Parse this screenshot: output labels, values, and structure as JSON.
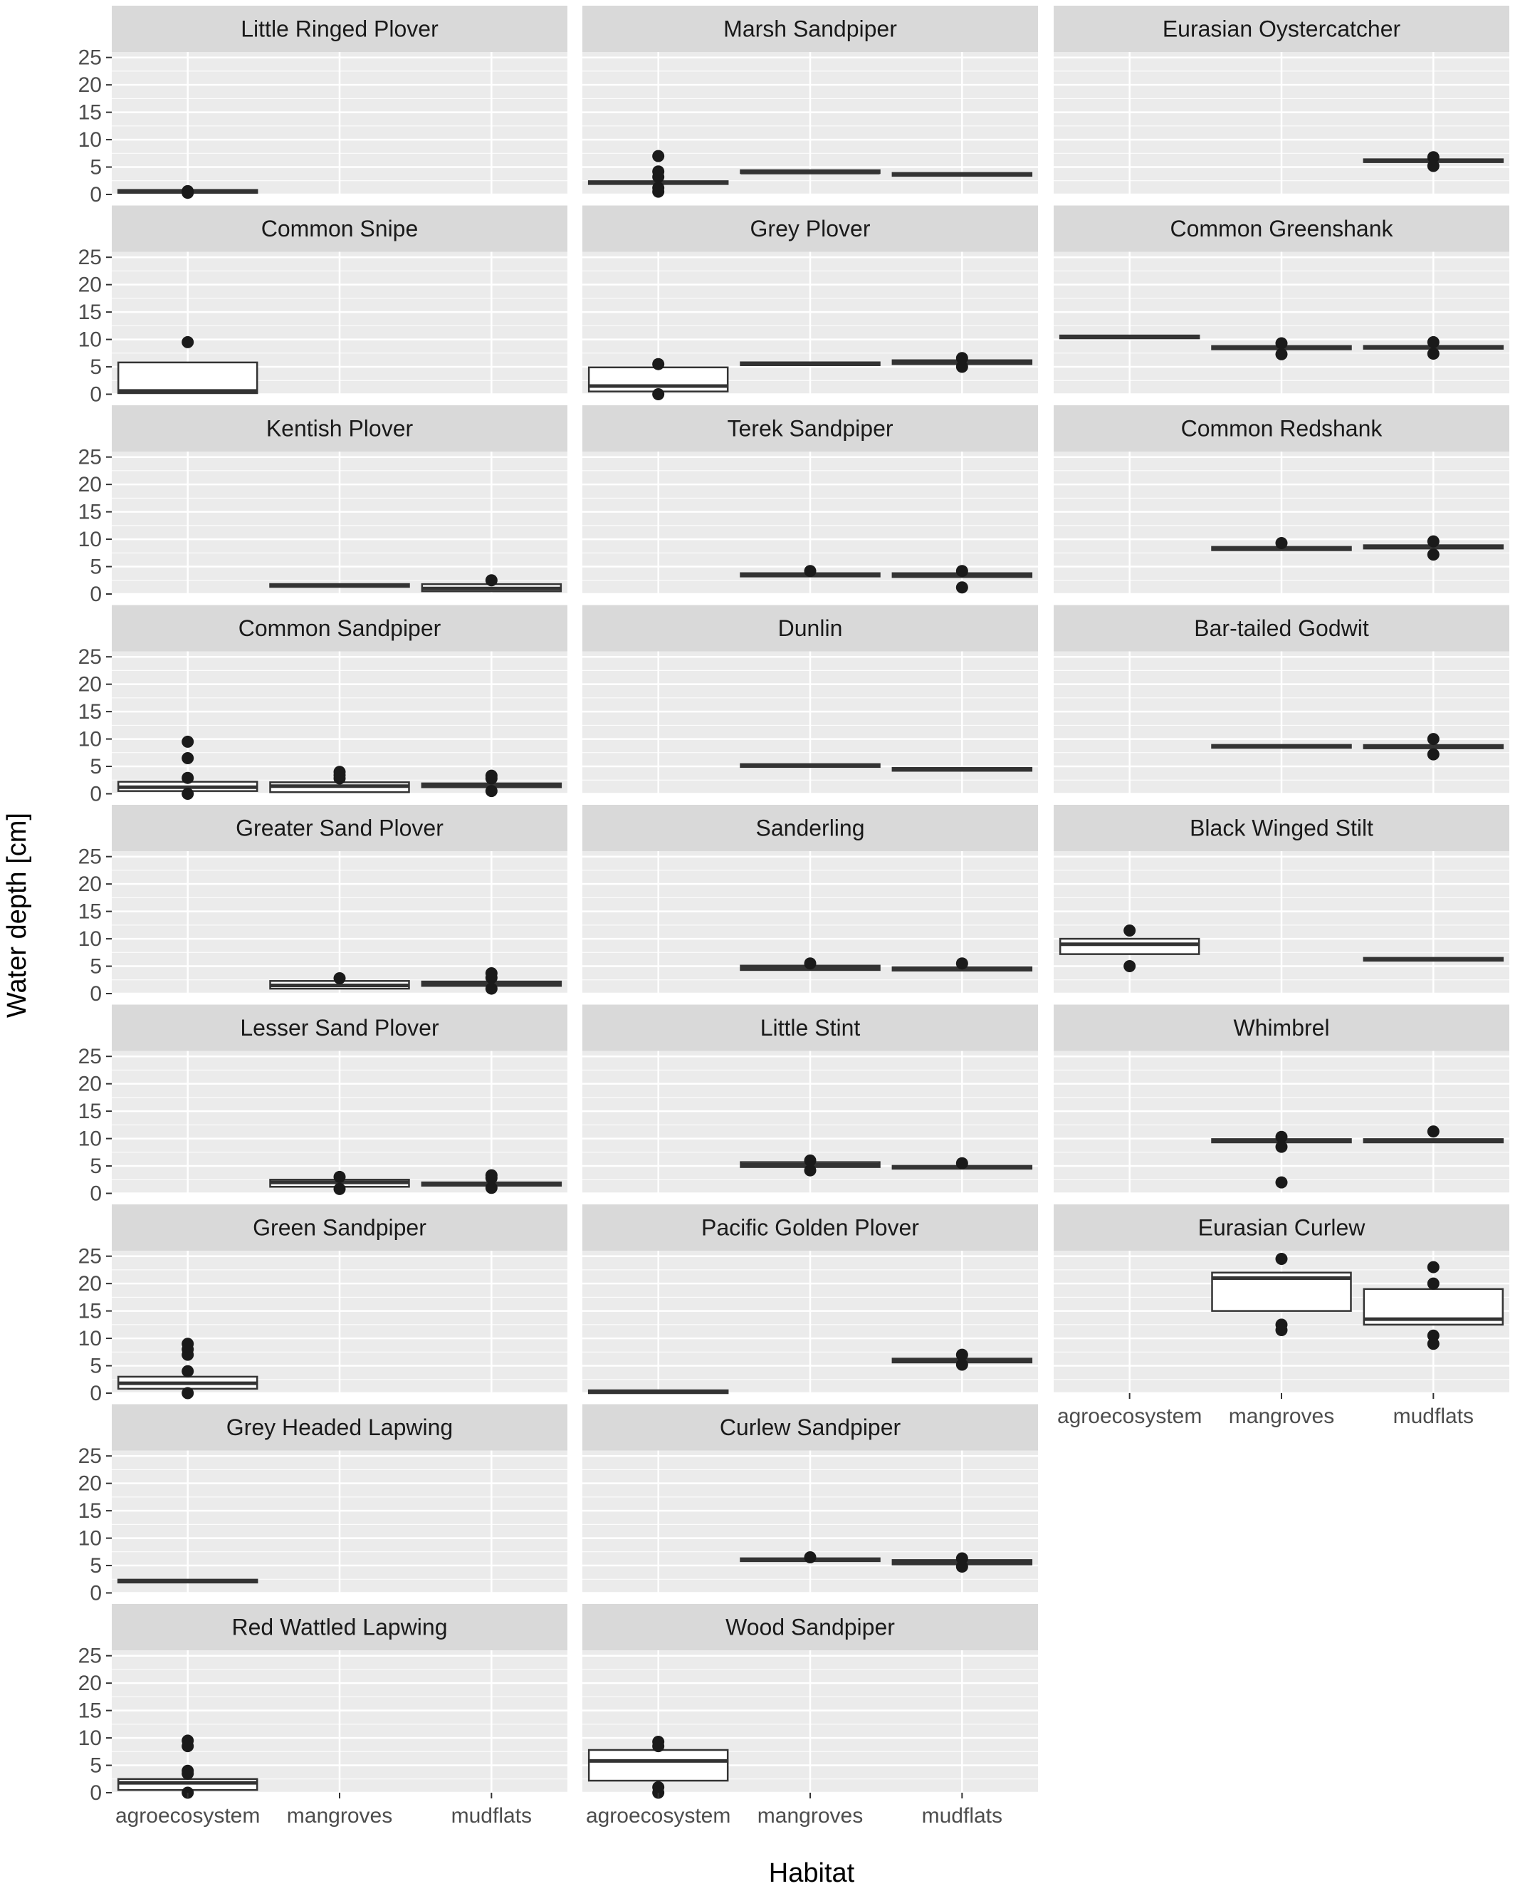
{
  "chart_data": {
    "type": "boxplot",
    "xlabel": "Habitat",
    "ylabel": "Water depth [cm]",
    "categories": [
      "agroecosystem",
      "mangroves",
      "mudflats"
    ],
    "yticks": [
      0,
      5,
      10,
      15,
      20,
      25
    ],
    "ylim": [
      0,
      26
    ],
    "grid": true,
    "colors": {
      "panel_bg": "#ebebeb",
      "strip_bg": "#d9d9d9",
      "grid": "#ffffff",
      "box_fill": "#ffffff",
      "box_line": "#333333",
      "point": "#1a1a1a"
    },
    "panels": [
      {
        "title": "Little Ringed Plover",
        "boxes": [
          {
            "habitat": "agroecosystem",
            "q1": 0.3,
            "median": 0.5,
            "q3": 0.7,
            "outliers": [
              0.3,
              0.6
            ]
          }
        ]
      },
      {
        "title": "Marsh Sandpiper",
        "boxes": [
          {
            "habitat": "agroecosystem",
            "q1": 1.9,
            "median": 2.1,
            "q3": 2.3,
            "outliers": [
              0.5,
              1.2,
              3.2,
              4.2,
              7.0
            ]
          },
          {
            "habitat": "mangroves",
            "q1": 3.9,
            "median": 4.0,
            "q3": 4.2,
            "outliers": []
          },
          {
            "habitat": "mudflats",
            "q1": 3.4,
            "median": 3.6,
            "q3": 3.8,
            "outliers": []
          }
        ]
      },
      {
        "title": "Eurasian Oystercatcher",
        "boxes": [
          {
            "habitat": "mudflats",
            "q1": 5.9,
            "median": 6.1,
            "q3": 6.4,
            "outliers": [
              5.2,
              6.8
            ]
          }
        ]
      },
      {
        "title": "Common Snipe",
        "boxes": [
          {
            "habitat": "agroecosystem",
            "q1": 0.2,
            "median": 0.6,
            "q3": 5.8,
            "outliers": [
              9.5
            ]
          }
        ]
      },
      {
        "title": "Grey Plover",
        "boxes": [
          {
            "habitat": "agroecosystem",
            "q1": 0.5,
            "median": 1.5,
            "q3": 4.9,
            "outliers": [
              0.0,
              5.5
            ]
          },
          {
            "habitat": "mangroves",
            "q1": 5.3,
            "median": 5.5,
            "q3": 5.8,
            "outliers": []
          },
          {
            "habitat": "mudflats",
            "q1": 5.5,
            "median": 5.8,
            "q3": 6.2,
            "outliers": [
              5.0,
              6.6
            ]
          }
        ]
      },
      {
        "title": "Common Greenshank",
        "boxes": [
          {
            "habitat": "agroecosystem",
            "q1": 10.2,
            "median": 10.4,
            "q3": 10.6,
            "outliers": []
          },
          {
            "habitat": "mangroves",
            "q1": 8.2,
            "median": 8.5,
            "q3": 8.8,
            "outliers": [
              7.3,
              9.3
            ]
          },
          {
            "habitat": "mudflats",
            "q1": 8.3,
            "median": 8.6,
            "q3": 8.8,
            "outliers": [
              7.4,
              9.5
            ]
          }
        ]
      },
      {
        "title": "Kentish Plover",
        "boxes": [
          {
            "habitat": "mangroves",
            "q1": 1.3,
            "median": 1.5,
            "q3": 1.7,
            "outliers": []
          },
          {
            "habitat": "mudflats",
            "q1": 0.5,
            "median": 1.0,
            "q3": 1.8,
            "outliers": [
              2.5
            ]
          }
        ]
      },
      {
        "title": "Terek Sandpiper",
        "boxes": [
          {
            "habitat": "mangroves",
            "q1": 3.2,
            "median": 3.5,
            "q3": 3.8,
            "outliers": [
              4.2
            ]
          },
          {
            "habitat": "mudflats",
            "q1": 3.1,
            "median": 3.4,
            "q3": 3.8,
            "outliers": [
              1.2,
              4.2
            ]
          }
        ]
      },
      {
        "title": "Common Redshank",
        "boxes": [
          {
            "habitat": "mangroves",
            "q1": 8.0,
            "median": 8.3,
            "q3": 8.6,
            "outliers": [
              9.3
            ]
          },
          {
            "habitat": "mudflats",
            "q1": 8.3,
            "median": 8.6,
            "q3": 8.9,
            "outliers": [
              7.2,
              9.6
            ]
          }
        ]
      },
      {
        "title": "Common Sandpiper",
        "boxes": [
          {
            "habitat": "agroecosystem",
            "q1": 0.5,
            "median": 1.2,
            "q3": 2.2,
            "outliers": [
              0.0,
              2.9,
              6.5,
              9.5
            ]
          },
          {
            "habitat": "mangroves",
            "q1": 0.3,
            "median": 1.4,
            "q3": 2.1,
            "outliers": [
              2.8,
              3.4,
              4.0
            ]
          },
          {
            "habitat": "mudflats",
            "q1": 1.2,
            "median": 1.5,
            "q3": 1.9,
            "outliers": [
              0.5,
              2.8,
              3.3
            ]
          }
        ]
      },
      {
        "title": "Dunlin",
        "boxes": [
          {
            "habitat": "mangroves",
            "q1": 4.9,
            "median": 5.1,
            "q3": 5.4,
            "outliers": []
          },
          {
            "habitat": "mudflats",
            "q1": 4.2,
            "median": 4.4,
            "q3": 4.6,
            "outliers": []
          }
        ]
      },
      {
        "title": "Bar-tailed Godwit",
        "boxes": [
          {
            "habitat": "mangroves",
            "q1": 8.4,
            "median": 8.6,
            "q3": 8.8,
            "outliers": []
          },
          {
            "habitat": "mudflats",
            "q1": 8.3,
            "median": 8.6,
            "q3": 8.9,
            "outliers": [
              7.2,
              10.0
            ]
          }
        ]
      },
      {
        "title": "Greater Sand Plover",
        "boxes": [
          {
            "habitat": "mangroves",
            "q1": 0.9,
            "median": 1.5,
            "q3": 2.3,
            "outliers": [
              2.8
            ]
          },
          {
            "habitat": "mudflats",
            "q1": 1.4,
            "median": 1.8,
            "q3": 2.2,
            "outliers": [
              0.9,
              2.9,
              3.7
            ]
          }
        ]
      },
      {
        "title": "Sanderling",
        "boxes": [
          {
            "habitat": "mangroves",
            "q1": 4.3,
            "median": 4.7,
            "q3": 5.1,
            "outliers": [
              5.5
            ]
          },
          {
            "habitat": "mudflats",
            "q1": 4.2,
            "median": 4.5,
            "q3": 4.8,
            "outliers": [
              5.5
            ]
          }
        ]
      },
      {
        "title": "Black Winged Stilt",
        "boxes": [
          {
            "habitat": "agroecosystem",
            "q1": 7.2,
            "median": 9.0,
            "q3": 10.0,
            "outliers": [
              5.0,
              11.5
            ]
          },
          {
            "habitat": "mudflats",
            "q1": 6.0,
            "median": 6.3,
            "q3": 6.5,
            "outliers": []
          }
        ]
      },
      {
        "title": "Lesser Sand Plover",
        "boxes": [
          {
            "habitat": "mangroves",
            "q1": 1.2,
            "median": 2.0,
            "q3": 2.5,
            "outliers": [
              0.8,
              3.0
            ]
          },
          {
            "habitat": "mudflats",
            "q1": 1.4,
            "median": 1.7,
            "q3": 2.0,
            "outliers": [
              1.0,
              2.8,
              3.3
            ]
          }
        ]
      },
      {
        "title": "Little Stint",
        "boxes": [
          {
            "habitat": "mangroves",
            "q1": 4.8,
            "median": 5.2,
            "q3": 5.7,
            "outliers": [
              4.2,
              6.0
            ]
          },
          {
            "habitat": "mudflats",
            "q1": 4.5,
            "median": 4.8,
            "q3": 5.0,
            "outliers": [
              5.5
            ]
          }
        ]
      },
      {
        "title": "Whimbrel",
        "boxes": [
          {
            "habitat": "mangroves",
            "q1": 9.3,
            "median": 9.6,
            "q3": 9.9,
            "outliers": [
              2.0,
              8.5,
              10.3
            ]
          },
          {
            "habitat": "mudflats",
            "q1": 9.3,
            "median": 9.6,
            "q3": 9.9,
            "outliers": [
              11.3
            ]
          }
        ]
      },
      {
        "title": "Green Sandpiper",
        "boxes": [
          {
            "habitat": "agroecosystem",
            "q1": 0.8,
            "median": 1.8,
            "q3": 3.0,
            "outliers": [
              0.0,
              4.0,
              7.0,
              8.0,
              9.0
            ]
          }
        ]
      },
      {
        "title": "Pacific Golden Plover",
        "boxes": [
          {
            "habitat": "agroecosystem",
            "q1": 0.0,
            "median": 0.2,
            "q3": 0.4,
            "outliers": []
          },
          {
            "habitat": "mudflats",
            "q1": 5.6,
            "median": 5.9,
            "q3": 6.3,
            "outliers": [
              5.2,
              7.0
            ]
          }
        ]
      },
      {
        "title": "Eurasian Curlew",
        "boxes": [
          {
            "habitat": "mangroves",
            "q1": 15.0,
            "median": 21.0,
            "q3": 22.0,
            "outliers": [
              11.5,
              12.5,
              24.5
            ]
          },
          {
            "habitat": "mudflats",
            "q1": 12.5,
            "median": 13.5,
            "q3": 19.0,
            "outliers": [
              9.0,
              10.5,
              20.0,
              23.0
            ]
          }
        ]
      },
      {
        "title": "Grey Headed Lapwing",
        "boxes": [
          {
            "habitat": "agroecosystem",
            "q1": 1.9,
            "median": 2.1,
            "q3": 2.3,
            "outliers": []
          }
        ]
      },
      {
        "title": "Curlew Sandpiper",
        "boxes": [
          {
            "habitat": "mangroves",
            "q1": 5.8,
            "median": 6.0,
            "q3": 6.2,
            "outliers": [
              6.5
            ]
          },
          {
            "habitat": "mudflats",
            "q1": 5.2,
            "median": 5.6,
            "q3": 6.0,
            "outliers": [
              4.8,
              6.3
            ]
          }
        ]
      },
      {
        "title": "Red Wattled Lapwing",
        "boxes": [
          {
            "habitat": "agroecosystem",
            "q1": 0.5,
            "median": 1.8,
            "q3": 2.5,
            "outliers": [
              0.0,
              3.5,
              4.0,
              8.5,
              9.5
            ]
          }
        ]
      },
      {
        "title": "Wood Sandpiper",
        "boxes": [
          {
            "habitat": "agroecosystem",
            "q1": 2.2,
            "median": 5.8,
            "q3": 7.8,
            "outliers": [
              0.0,
              1.0,
              8.5,
              9.3
            ]
          }
        ]
      }
    ]
  }
}
